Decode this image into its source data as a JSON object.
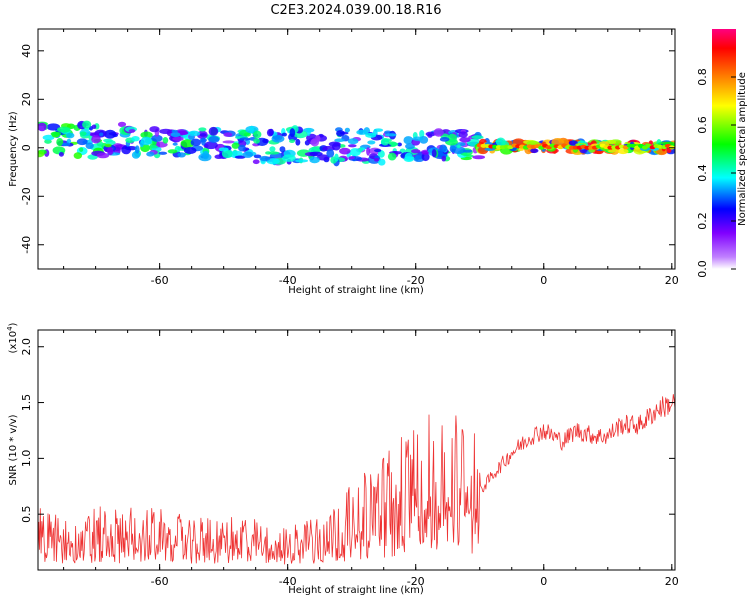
{
  "title": "C2E3.2024.039.00.18.R16",
  "chart_data": [
    {
      "type": "heatmap",
      "xlabel": "Height of straight line (km)",
      "ylabel": "Frequency (Hz)",
      "xlim": [
        -79,
        20.5
      ],
      "ylim": [
        -50,
        49
      ],
      "xticks": [
        -60,
        -40,
        -20,
        0,
        20
      ],
      "yticks": [
        -40,
        -20,
        0,
        20,
        40
      ],
      "colorbar": {
        "label": "Normalized spectral amplitude",
        "range": [
          0,
          1
        ],
        "ticks": [
          0.0,
          0.2,
          0.4,
          0.6,
          0.8
        ],
        "colors": [
          "#ffffff",
          "#8000ff",
          "#0000ff",
          "#00ffff",
          "#00ff00",
          "#ffff00",
          "#ff8000",
          "#ff0000",
          "#ff0080"
        ]
      },
      "band_segments": [
        {
          "x0": -79,
          "x1": -65,
          "f_center": 3,
          "f_halfwidth": 7,
          "amp": 0.5
        },
        {
          "x0": -65,
          "x1": -45,
          "f_center": 2,
          "f_halfwidth": 6,
          "amp": 0.45
        },
        {
          "x0": -45,
          "x1": -25,
          "f_center": 1,
          "f_halfwidth": 7,
          "amp": 0.4
        },
        {
          "x0": -25,
          "x1": -10,
          "f_center": 1,
          "f_halfwidth": 6,
          "amp": 0.45
        },
        {
          "x0": -10,
          "x1": 20.5,
          "f_center": 0.5,
          "f_halfwidth": 2,
          "amp": 0.85
        }
      ]
    },
    {
      "type": "line",
      "xlabel": "Height of straight line (km)",
      "ylabel": "SNR (10 * v/v)",
      "yscale_label": "(x10",
      "yscale_exp": "4",
      "yscale_close": ")",
      "xlim": [
        -79,
        20.5
      ],
      "ylim": [
        0,
        2.15
      ],
      "xticks": [
        -60,
        -40,
        -20,
        0,
        20
      ],
      "yticks": [
        0.5,
        1.0,
        1.5,
        2.0
      ],
      "color": "#ee3333",
      "series": [
        {
          "x": [
            -79,
            -75,
            -70,
            -65,
            -60,
            -55,
            -50,
            -45,
            -40,
            -35,
            -30,
            -25,
            -22,
            -20,
            -18,
            -15,
            -12,
            -10,
            -8,
            -5,
            -2,
            0,
            3,
            5,
            8,
            10,
            12,
            15,
            18,
            20.5
          ],
          "values": [
            0.3,
            0.25,
            0.3,
            0.3,
            0.3,
            0.25,
            0.25,
            0.25,
            0.2,
            0.3,
            0.4,
            0.55,
            0.65,
            0.7,
            0.75,
            0.75,
            0.7,
            0.7,
            0.85,
            1.05,
            1.2,
            1.25,
            1.15,
            1.25,
            1.2,
            1.2,
            1.3,
            1.3,
            1.45,
            1.5
          ]
        }
      ]
    }
  ]
}
